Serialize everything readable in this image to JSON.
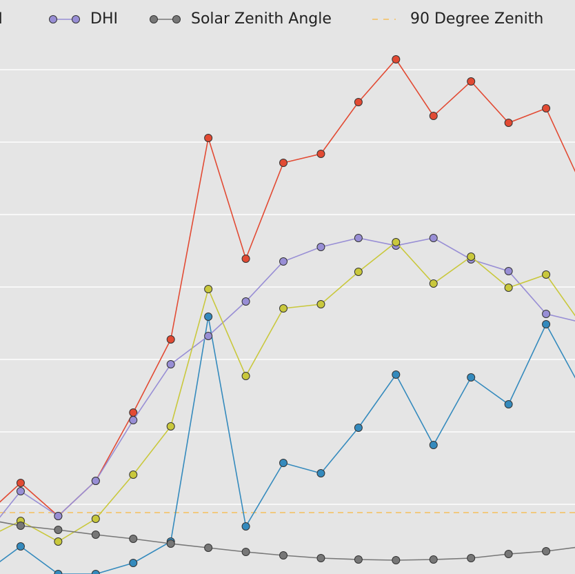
{
  "chart_data": {
    "type": "line",
    "x": [
      0,
      1,
      2,
      3,
      4,
      5,
      6,
      7,
      8,
      9,
      10,
      11,
      12,
      13,
      14,
      15,
      16
    ],
    "xlim": [
      0.45,
      15.77
    ],
    "ylim": [
      0,
      832
    ],
    "yticks": [
      101,
      206,
      311,
      416,
      521,
      626,
      731
    ],
    "grid": true,
    "series": [
      {
        "color": "#e24a33",
        "values": [
          82,
          132,
          84,
          135,
          234,
          340,
          632,
          457,
          596,
          609,
          684,
          746,
          664,
          714,
          654,
          675,
          557
        ]
      },
      {
        "name": "DNI",
        "color": "#348abd",
        "values": [
          0,
          40,
          0,
          0,
          16,
          47,
          373,
          69,
          161,
          146,
          212,
          289,
          187,
          285,
          246,
          362,
          262
        ]
      },
      {
        "name": "DHI",
        "color": "#988ed5",
        "values": [
          52,
          120,
          84,
          135,
          223,
          304,
          345,
          395,
          453,
          474,
          487,
          476,
          487,
          456,
          439,
          377,
          364
        ]
      },
      {
        "color": "#c9c83c",
        "values": [
          50,
          77,
          47,
          80,
          144,
          214,
          413,
          287,
          385,
          391,
          438,
          481,
          421,
          460,
          415,
          434,
          357
        ]
      },
      {
        "name": "Solar Zenith Angle",
        "color": "#777777",
        "values": [
          80,
          70,
          64,
          57,
          51,
          44,
          38,
          32,
          27,
          23,
          21,
          20,
          21,
          23,
          29,
          33,
          40
        ]
      }
    ],
    "reference_line": {
      "name": "90 Degree Zenith",
      "color": "#f5bf5c",
      "value": 89
    }
  }
}
